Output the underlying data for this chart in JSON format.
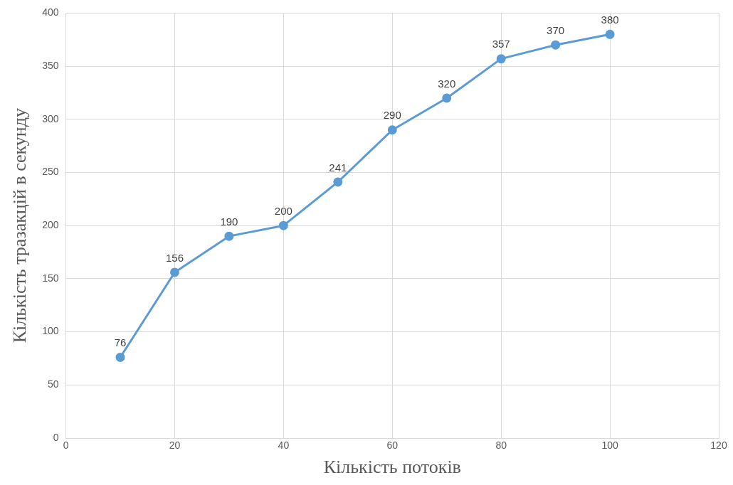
{
  "chart_data": {
    "type": "line",
    "xlabel": "Кількість потоків",
    "ylabel": "Кількість тразакцій в секунду",
    "x": [
      10,
      20,
      30,
      40,
      50,
      60,
      70,
      80,
      90,
      100
    ],
    "series": [
      {
        "color": "#5b9bd5",
        "values": [
          76,
          156,
          190,
          200,
          241,
          290,
          320,
          357,
          370,
          380
        ]
      }
    ],
    "xlim": [
      0,
      120
    ],
    "xticks": [
      0,
      20,
      40,
      60,
      80,
      100,
      120
    ],
    "ylim": [
      0,
      400
    ],
    "yticks": [
      0,
      50,
      100,
      150,
      200,
      250,
      300,
      350,
      400
    ],
    "grid": true,
    "legend": false,
    "marker": "circle",
    "line_style": "solid",
    "data_labels": true
  }
}
